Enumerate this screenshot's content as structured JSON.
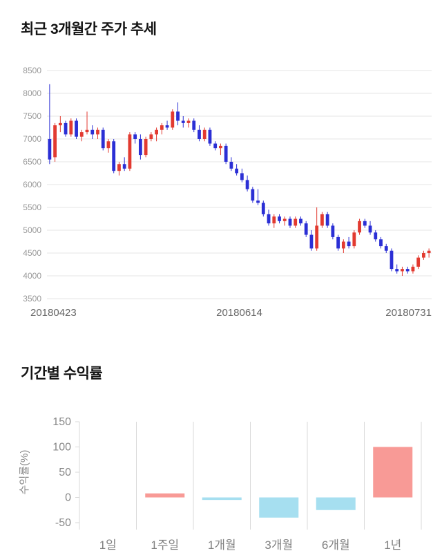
{
  "sections": {
    "price_trend_title": "최근 3개월간 주가 추세",
    "returns_title": "기간별 수익률"
  },
  "chart_data": [
    {
      "type": "candlestick",
      "title": "최근 3개월간 주가 추세",
      "ylim": [
        3500,
        8500
      ],
      "y_ticks": [
        8500,
        8000,
        7500,
        7000,
        6500,
        6000,
        5500,
        5000,
        4500,
        4000,
        3500
      ],
      "x_labels": [
        "20180423",
        "20180614",
        "20180731"
      ],
      "up_color": "#e23a30",
      "down_color": "#2b2fd5",
      "grid_color": "#e6e6e6",
      "axis_text_color": "#999999",
      "xaxis_text_color": "#666666",
      "candles": [
        [
          7000,
          8200,
          6450,
          6550
        ],
        [
          6600,
          7350,
          6500,
          7300
        ],
        [
          7300,
          7500,
          7150,
          7350
        ],
        [
          7350,
          7400,
          7050,
          7100
        ],
        [
          7100,
          7450,
          7050,
          7400
        ],
        [
          7400,
          7450,
          7000,
          7050
        ],
        [
          7050,
          7200,
          6950,
          7150
        ],
        [
          7150,
          7600,
          7100,
          7200
        ],
        [
          7200,
          7300,
          7000,
          7100
        ],
        [
          7100,
          7250,
          7000,
          7200
        ],
        [
          7200,
          7250,
          6750,
          6800
        ],
        [
          6800,
          7000,
          6700,
          6950
        ],
        [
          6950,
          7000,
          6250,
          6300
        ],
        [
          6300,
          6500,
          6200,
          6450
        ],
        [
          6450,
          6600,
          6300,
          6350
        ],
        [
          6350,
          7150,
          6300,
          7100
        ],
        [
          7100,
          7150,
          6900,
          7000
        ],
        [
          7000,
          7100,
          6550,
          6650
        ],
        [
          6650,
          7050,
          6600,
          7000
        ],
        [
          7000,
          7150,
          6950,
          7100
        ],
        [
          7100,
          7250,
          6950,
          7200
        ],
        [
          7200,
          7350,
          7100,
          7300
        ],
        [
          7300,
          7400,
          7200,
          7250
        ],
        [
          7250,
          7650,
          7200,
          7600
        ],
        [
          7600,
          7800,
          7300,
          7400
        ],
        [
          7400,
          7500,
          7250,
          7350
        ],
        [
          7350,
          7450,
          7250,
          7400
        ],
        [
          7400,
          7450,
          7150,
          7200
        ],
        [
          7200,
          7300,
          6950,
          7000
        ],
        [
          7000,
          7250,
          6950,
          7200
        ],
        [
          7200,
          7250,
          6850,
          6900
        ],
        [
          6900,
          6950,
          6750,
          6800
        ],
        [
          6800,
          6900,
          6650,
          6850
        ],
        [
          6850,
          6900,
          6450,
          6500
        ],
        [
          6500,
          6600,
          6300,
          6350
        ],
        [
          6350,
          6450,
          6200,
          6250
        ],
        [
          6250,
          6350,
          6050,
          6100
        ],
        [
          6100,
          6200,
          5850,
          5900
        ],
        [
          5900,
          5950,
          5600,
          5650
        ],
        [
          5650,
          5900,
          5550,
          5600
        ],
        [
          5600,
          5650,
          5300,
          5350
        ],
        [
          5350,
          5450,
          5100,
          5150
        ],
        [
          5150,
          5350,
          5050,
          5300
        ],
        [
          5300,
          5350,
          5150,
          5200
        ],
        [
          5200,
          5300,
          5100,
          5250
        ],
        [
          5250,
          5300,
          5050,
          5100
        ],
        [
          5100,
          5300,
          5050,
          5250
        ],
        [
          5250,
          5300,
          5100,
          5150
        ],
        [
          5150,
          5200,
          4850,
          4900
        ],
        [
          4900,
          5000,
          4550,
          4600
        ],
        [
          4600,
          5500,
          4550,
          5100
        ],
        [
          5100,
          5400,
          5050,
          5350
        ],
        [
          5350,
          5400,
          5050,
          5100
        ],
        [
          5100,
          5150,
          4800,
          4850
        ],
        [
          4850,
          4900,
          4550,
          4600
        ],
        [
          4600,
          4800,
          4500,
          4750
        ],
        [
          4750,
          4850,
          4600,
          4650
        ],
        [
          4650,
          5000,
          4600,
          4950
        ],
        [
          4950,
          5250,
          4900,
          5200
        ],
        [
          5200,
          5250,
          5050,
          5100
        ],
        [
          5100,
          5200,
          4900,
          4950
        ],
        [
          4950,
          5000,
          4750,
          4800
        ],
        [
          4800,
          4850,
          4600,
          4650
        ],
        [
          4650,
          4700,
          4500,
          4550
        ],
        [
          4550,
          4600,
          4100,
          4150
        ],
        [
          4150,
          4250,
          4050,
          4100
        ],
        [
          4100,
          4200,
          4000,
          4150
        ],
        [
          4150,
          4200,
          4050,
          4100
        ],
        [
          4100,
          4250,
          4050,
          4200
        ],
        [
          4200,
          4450,
          4150,
          4400
        ],
        [
          4400,
          4550,
          4350,
          4500
        ],
        [
          4500,
          4600,
          4400,
          4550
        ]
      ]
    },
    {
      "type": "bar",
      "title": "기간별 수익률",
      "categories": [
        "1일",
        "1주일",
        "1개월",
        "3개월",
        "6개월",
        "1년"
      ],
      "values": [
        0,
        8,
        -5,
        -40,
        -25,
        100
      ],
      "ylabel": "수익률(%)",
      "y_ticks": [
        150,
        100,
        50,
        0,
        -50
      ],
      "ylim": [
        -60,
        150
      ],
      "legend": "none",
      "grid": "vertical",
      "pos_color": "#f89a96",
      "neg_color": "#a6dff0",
      "grid_color": "#d9d9d9",
      "axis_text_color": "#888888",
      "category_text_color": "#808080"
    }
  ]
}
